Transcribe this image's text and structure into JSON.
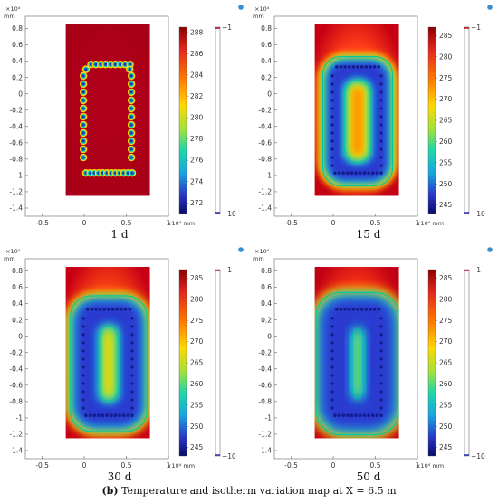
{
  "figure_caption": {
    "label": "(b)",
    "text": "Temperature and isotherm variation map at X = 6.5 m"
  },
  "axis_common": {
    "x_ticks": [
      "-0.5",
      "0",
      "0.5",
      "1"
    ],
    "y_ticks": [
      "0.8",
      "0.6",
      "0.4",
      "0.2",
      "0",
      "-0.2",
      "-0.4",
      "-0.6",
      "-0.8",
      "-1",
      "-1.2",
      "-1.4"
    ],
    "x_multiplier": "×10⁴ mm",
    "y_multiplier": "×10⁴",
    "y_unit": "mm"
  },
  "colors": {
    "hot": "#b3001b",
    "cold": "#1c1cb8",
    "isotherm": "#00c8a0"
  },
  "chart_data": [
    {
      "type": "heatmap",
      "caption": "1 d",
      "xlim": [
        -0.7,
        1.0
      ],
      "ylim": [
        -1.5,
        0.95
      ],
      "temperature_colorbar": {
        "ticks": [
          "288",
          "286",
          "284",
          "282",
          "280",
          "278",
          "276",
          "274",
          "272"
        ],
        "min": 271,
        "max": 288.5
      },
      "isotherm_colorbar": {
        "top": "−1",
        "bottom": "−10"
      },
      "stage": 0
    },
    {
      "type": "heatmap",
      "caption": "15 d",
      "xlim": [
        -0.7,
        1.0
      ],
      "ylim": [
        -1.5,
        0.95
      ],
      "temperature_colorbar": {
        "ticks": [
          "285",
          "280",
          "275",
          "270",
          "265",
          "260",
          "255",
          "250",
          "245"
        ],
        "min": 243,
        "max": 287
      },
      "isotherm_colorbar": {
        "top": "−1",
        "bottom": "−10"
      },
      "stage": 1
    },
    {
      "type": "heatmap",
      "caption": "30 d",
      "xlim": [
        -0.7,
        1.0
      ],
      "ylim": [
        -1.5,
        0.95
      ],
      "temperature_colorbar": {
        "ticks": [
          "285",
          "280",
          "275",
          "270",
          "265",
          "260",
          "255",
          "250",
          "245"
        ],
        "min": 243,
        "max": 287
      },
      "isotherm_colorbar": {
        "top": "−1",
        "bottom": "−10"
      },
      "stage": 2
    },
    {
      "type": "heatmap",
      "caption": "50 d",
      "xlim": [
        -0.7,
        1.0
      ],
      "ylim": [
        -1.5,
        0.95
      ],
      "temperature_colorbar": {
        "ticks": [
          "285",
          "280",
          "275",
          "270",
          "265",
          "260",
          "255",
          "250",
          "245"
        ],
        "min": 243,
        "max": 287
      },
      "isotherm_colorbar": {
        "top": "−1",
        "bottom": "−10"
      },
      "stage": 3
    }
  ]
}
